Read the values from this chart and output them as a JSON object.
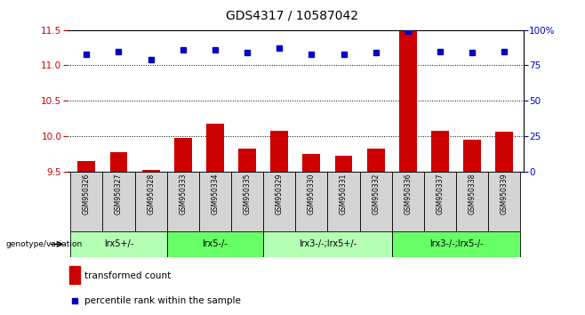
{
  "title": "GDS4317 / 10587042",
  "samples": [
    "GSM950326",
    "GSM950327",
    "GSM950328",
    "GSM950333",
    "GSM950334",
    "GSM950335",
    "GSM950329",
    "GSM950330",
    "GSM950331",
    "GSM950332",
    "GSM950336",
    "GSM950337",
    "GSM950338",
    "GSM950339"
  ],
  "transformed_count": [
    9.65,
    9.78,
    9.53,
    9.97,
    10.18,
    9.83,
    10.08,
    9.75,
    9.72,
    9.82,
    11.48,
    10.08,
    9.95,
    10.07
  ],
  "percentile_rank": [
    83,
    85,
    79,
    86,
    86,
    84,
    87,
    83,
    83,
    84,
    99,
    85,
    84,
    85
  ],
  "ylim_left": [
    9.5,
    11.5
  ],
  "ylim_right": [
    0,
    100
  ],
  "yticks_left": [
    9.5,
    10.0,
    10.5,
    11.0,
    11.5
  ],
  "yticks_right": [
    0,
    25,
    50,
    75,
    100
  ],
  "bar_color": "#cc0000",
  "dot_color": "#0000cc",
  "groups": [
    {
      "label": "lrx5+/-",
      "start": 0,
      "end": 3,
      "color": "#b3ffb3"
    },
    {
      "label": "lrx5-/-",
      "start": 3,
      "end": 6,
      "color": "#66ff66"
    },
    {
      "label": "lrx3-/-;lrx5+/-",
      "start": 6,
      "end": 10,
      "color": "#b3ffb3"
    },
    {
      "label": "lrx3-/-;lrx5-/-",
      "start": 10,
      "end": 14,
      "color": "#66ff66"
    }
  ],
  "group_row_label": "genotype/variation",
  "legend_bar_label": "transformed count",
  "legend_dot_label": "percentile rank within the sample",
  "title_color": "#000000",
  "left_axis_color": "#cc0000",
  "right_axis_color": "#0000cc",
  "background_color": "#ffffff"
}
